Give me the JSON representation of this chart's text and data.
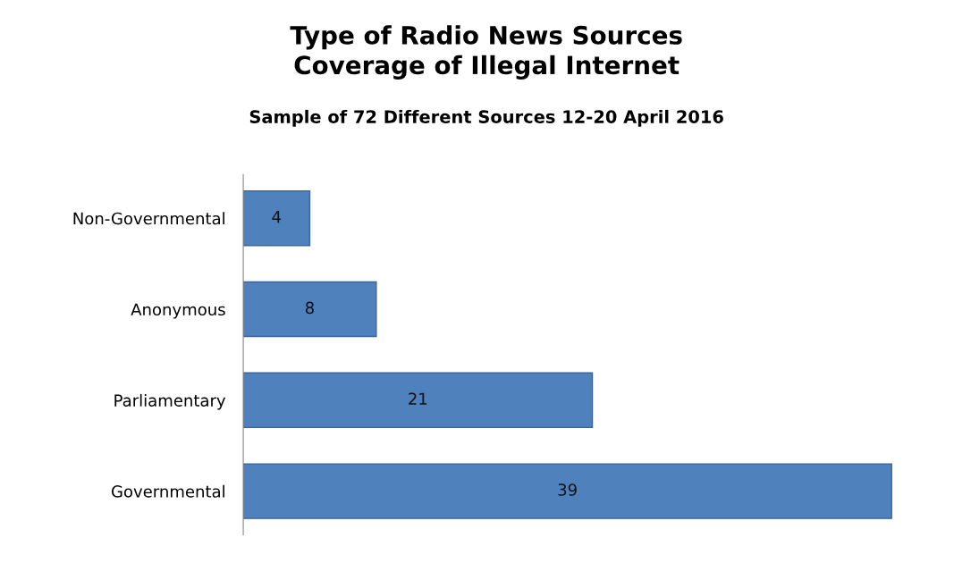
{
  "chart_data": {
    "type": "bar",
    "orientation": "horizontal",
    "title": "Type of Radio News Sources\nCoverage of Illegal Internet",
    "subtitle": "Sample of 72 Different Sources 12-20 April 2016",
    "categories": [
      "Non-Governmental",
      "Anonymous",
      "Parliamentary",
      "Governmental"
    ],
    "values": [
      4,
      8,
      21,
      39
    ],
    "color": "#4f81bd",
    "data_labels": true,
    "grid": false
  }
}
